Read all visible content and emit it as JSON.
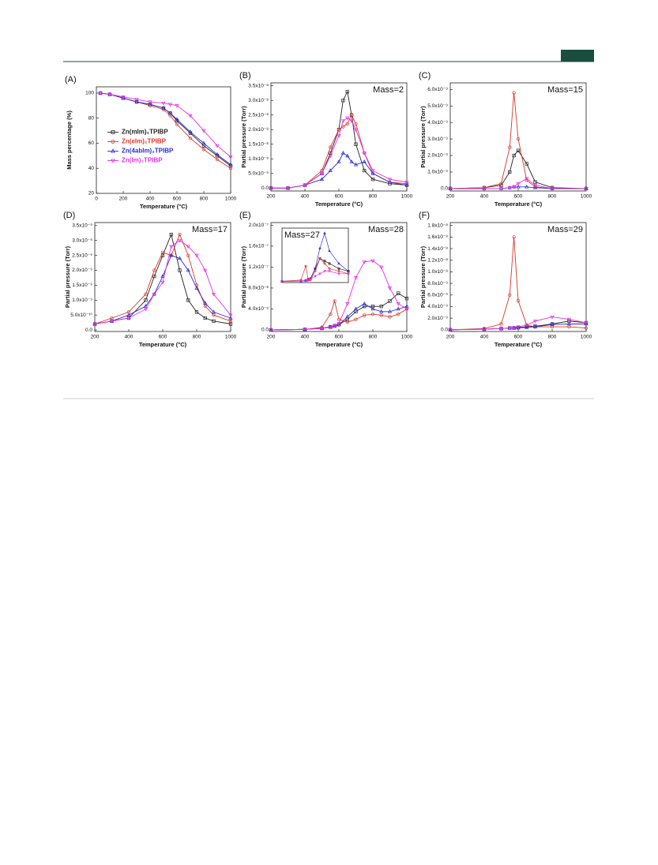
{
  "chart_data": [
    {
      "type": "line",
      "panel": "(A)",
      "xlabel": "Temperature (°C)",
      "ylabel": "Mass percentage (%)",
      "xlim": [
        0,
        1000
      ],
      "xticks": [
        0,
        200,
        400,
        600,
        800,
        1000
      ],
      "ylim": [
        20,
        105
      ],
      "yticks": [
        20,
        40,
        60,
        80,
        100
      ],
      "legend": "center-left",
      "x": [
        30,
        100,
        200,
        300,
        400,
        500,
        550,
        600,
        700,
        800,
        900,
        1000
      ],
      "series": [
        {
          "name": "Zn(mIm)₂TPIBP",
          "color": "#222222",
          "marker": "square",
          "values": [
            100,
            99,
            96,
            93,
            91,
            88,
            84,
            78,
            68,
            58,
            50,
            42
          ]
        },
        {
          "name": "Zn(eIm)₂TPIBP",
          "color": "#d9372a",
          "marker": "circle",
          "values": [
            100,
            99,
            96,
            93,
            90,
            87,
            82,
            75,
            64,
            55,
            47,
            40
          ]
        },
        {
          "name": "Zn(4abIm)₂TPIBP",
          "color": "#2b2bd6",
          "marker": "triangle",
          "values": [
            100,
            99,
            96,
            93,
            91,
            88,
            84,
            79,
            69,
            60,
            51,
            43
          ]
        },
        {
          "name": "Zn(Im)₂TPIBP",
          "color": "#e62ee6",
          "marker": "down",
          "values": [
            100,
            99,
            97,
            95,
            93,
            92,
            91,
            90,
            82,
            70,
            58,
            49
          ]
        }
      ]
    },
    {
      "type": "line",
      "panel": "(B)",
      "annotation": "Mass=2",
      "xlabel": "Temperature (°C)",
      "ylabel": "Partial pressure (Torr)",
      "xlim": [
        200,
        1000
      ],
      "xticks": [
        200,
        400,
        600,
        800,
        1000
      ],
      "ylim": [
        -1e-09,
        3.6e-08
      ],
      "yticks": [
        {
          "value": 0,
          "label": "0.0"
        },
        {
          "value": 5e-09,
          "label": "5.0x10⁻⁹"
        },
        {
          "value": 1e-08,
          "label": "1.0x10⁻⁸"
        },
        {
          "value": 1.5e-08,
          "label": "1.5x10⁻⁸"
        },
        {
          "value": 2e-08,
          "label": "2.0x10⁻⁸"
        },
        {
          "value": 2.5e-08,
          "label": "2.5x10⁻⁸"
        },
        {
          "value": 3e-08,
          "label": "3.0x10⁻⁸"
        },
        {
          "value": 3.5e-08,
          "label": "3.5x10⁻⁸"
        }
      ],
      "x": [
        200,
        300,
        400,
        500,
        550,
        600,
        625,
        650,
        675,
        700,
        750,
        800,
        900,
        1000
      ],
      "series": [
        {
          "color": "#222222",
          "marker": "square",
          "values": [
            0,
            0,
            1e-09,
            5e-09,
            1.2e-08,
            2e-08,
            3e-08,
            3.3e-08,
            2.5e-08,
            1.5e-08,
            6e-09,
            3e-09,
            1.5e-09,
            1e-09
          ]
        },
        {
          "color": "#d9372a",
          "marker": "circle",
          "values": [
            0,
            0,
            1e-09,
            6e-09,
            1.4e-08,
            2e-08,
            2.1e-08,
            2.2e-08,
            2.5e-08,
            2.2e-08,
            1.2e-08,
            5e-09,
            2e-09,
            1.5e-09
          ]
        },
        {
          "color": "#2b2bd6",
          "marker": "triangle",
          "values": [
            0,
            0,
            1e-09,
            3e-09,
            6e-09,
            9e-09,
            1.2e-08,
            1.1e-08,
            9e-09,
            8e-09,
            9e-09,
            5e-09,
            2e-09,
            1e-09
          ]
        },
        {
          "color": "#e62ee6",
          "marker": "down",
          "values": [
            0,
            0,
            1e-09,
            5e-09,
            1.1e-08,
            1.8e-08,
            2.3e-08,
            2.4e-08,
            2.3e-08,
            2e-08,
            1.2e-08,
            6e-09,
            3e-09,
            2e-09
          ]
        }
      ]
    },
    {
      "type": "line",
      "panel": "(C)",
      "annotation": "Mass=15",
      "xlabel": "Temperature (°C)",
      "ylabel": "Partial pressure (Torr)",
      "xlim": [
        200,
        1000
      ],
      "xticks": [
        200,
        400,
        600,
        800,
        1000
      ],
      "ylim": [
        -1.5e-10,
        6.4e-09
      ],
      "yticks": [
        {
          "value": 0,
          "label": "0.0"
        },
        {
          "value": 1e-09,
          "label": "1.0x10⁻⁹"
        },
        {
          "value": 2e-09,
          "label": "2.0x10⁻⁹"
        },
        {
          "value": 3e-09,
          "label": "3.0x10⁻⁹"
        },
        {
          "value": 4e-09,
          "label": "4.0x10⁻⁹"
        },
        {
          "value": 5e-09,
          "label": "5.0x10⁻⁹"
        },
        {
          "value": 6e-09,
          "label": "6.0x10⁻⁹"
        }
      ],
      "x": [
        200,
        400,
        500,
        550,
        575,
        600,
        650,
        700,
        800,
        1000
      ],
      "series": [
        {
          "color": "#222222",
          "marker": "square",
          "values": [
            0,
            5e-11,
            2e-10,
            1e-09,
            2e-09,
            2.3e-09,
            1.5e-09,
            4e-10,
            5e-11,
            0
          ]
        },
        {
          "color": "#d9372a",
          "marker": "circle",
          "values": [
            0,
            5e-11,
            3e-10,
            2.5e-09,
            5.8e-09,
            3e-09,
            5e-10,
            1e-10,
            0,
            0
          ]
        },
        {
          "color": "#2b2bd6",
          "marker": "triangle",
          "values": [
            0,
            0,
            0,
            5e-11,
            1e-10,
            1e-10,
            1e-10,
            5e-11,
            0,
            0
          ]
        },
        {
          "color": "#e62ee6",
          "marker": "down",
          "values": [
            0,
            0,
            0,
            5e-11,
            1e-10,
            3e-10,
            6e-10,
            2e-10,
            0,
            0
          ]
        }
      ]
    },
    {
      "type": "line",
      "panel": "(D)",
      "annotation": "Mass=17",
      "xlabel": "Temperature (°C)",
      "ylabel": "Partial pressure (Torr)",
      "xlim": [
        200,
        1000
      ],
      "xticks": [
        200,
        400,
        600,
        800,
        1000
      ],
      "ylim": [
        -5e-11,
        3.6e-09
      ],
      "yticks": [
        {
          "value": 0,
          "label": "0.0"
        },
        {
          "value": 5e-10,
          "label": "5.0x10⁻¹⁰"
        },
        {
          "value": 1e-09,
          "label": "1.0x10⁻⁹"
        },
        {
          "value": 1.5e-09,
          "label": "1.5x10⁻⁹"
        },
        {
          "value": 2e-09,
          "label": "2.0x10⁻⁹"
        },
        {
          "value": 2.5e-09,
          "label": "2.5x10⁻⁹"
        },
        {
          "value": 3e-09,
          "label": "3.0x10⁻⁹"
        },
        {
          "value": 3.5e-09,
          "label": "3.5x10⁻⁹"
        }
      ],
      "x": [
        200,
        300,
        400,
        500,
        550,
        600,
        650,
        700,
        750,
        800,
        850,
        900,
        1000
      ],
      "series": [
        {
          "color": "#222222",
          "marker": "square",
          "values": [
            2e-10,
            3e-10,
            4e-10,
            1e-09,
            1.8e-09,
            2.5e-09,
            3.2e-09,
            2e-09,
            1e-09,
            6e-10,
            4e-10,
            3e-10,
            2e-10
          ]
        },
        {
          "color": "#d9372a",
          "marker": "circle",
          "values": [
            2e-10,
            4e-10,
            6e-10,
            1.2e-09,
            2e-09,
            2.6e-09,
            2.5e-09,
            3.2e-09,
            2.5e-09,
            1.5e-09,
            8e-10,
            5e-10,
            3e-10
          ]
        },
        {
          "color": "#2b2bd6",
          "marker": "triangle",
          "values": [
            2e-10,
            3e-10,
            5e-10,
            8e-10,
            1.2e-09,
            1.8e-09,
            2.5e-09,
            2.4e-09,
            2e-09,
            1.4e-09,
            9e-10,
            6e-10,
            4e-10
          ]
        },
        {
          "color": "#e62ee6",
          "marker": "down",
          "values": [
            2e-10,
            3e-10,
            4e-10,
            7e-10,
            1.2e-09,
            1.6e-09,
            2.8e-09,
            3e-09,
            2.8e-09,
            2.5e-09,
            2e-09,
            1.2e-09,
            5e-10
          ]
        }
      ]
    },
    {
      "type": "line",
      "panel": "(E)",
      "annotation": "Mass=28",
      "xlabel": "Temperature (°C)",
      "ylabel": "Partial pressure (Torr)",
      "xlim": [
        200,
        1000
      ],
      "xticks": [
        200,
        400,
        600,
        800,
        1000
      ],
      "ylim": [
        -3e-09,
        2.05e-07
      ],
      "yticks": [
        {
          "value": 0,
          "label": "0.0"
        },
        {
          "value": 4e-08,
          "label": "4.0x10⁻⁸"
        },
        {
          "value": 8e-08,
          "label": "8.0x10⁻⁸"
        },
        {
          "value": 1.2e-07,
          "label": "1.2x10⁻⁷"
        },
        {
          "value": 1.6e-07,
          "label": "1.6x10⁻⁷"
        },
        {
          "value": 2e-07,
          "label": "2.0x10⁻⁷"
        }
      ],
      "x": [
        200,
        400,
        500,
        550,
        575,
        600,
        650,
        700,
        750,
        800,
        850,
        900,
        950,
        1000
      ],
      "series": [
        {
          "color": "#222222",
          "marker": "square",
          "values": [
            0,
            1e-09,
            3e-09,
            6e-09,
            8e-09,
            1e-08,
            2e-08,
            3.5e-08,
            4.5e-08,
            4.5e-08,
            4.5e-08,
            5.5e-08,
            7e-08,
            6e-08
          ]
        },
        {
          "color": "#d9372a",
          "marker": "circle",
          "values": [
            0,
            1e-09,
            5e-09,
            3e-08,
            5.5e-08,
            2e-08,
            1.5e-08,
            2e-08,
            2.8e-08,
            3e-08,
            2.8e-08,
            2.5e-08,
            3e-08,
            4e-08
          ]
        },
        {
          "color": "#2b2bd6",
          "marker": "triangle",
          "values": [
            0,
            1e-09,
            3e-09,
            5e-09,
            7e-09,
            1e-08,
            2.5e-08,
            4e-08,
            5e-08,
            4e-08,
            3.5e-08,
            3.5e-08,
            4e-08,
            4.5e-08
          ]
        },
        {
          "color": "#e62ee6",
          "marker": "down",
          "values": [
            0,
            1e-09,
            3e-09,
            5e-09,
            8e-09,
            1.2e-08,
            5e-08,
            1e-07,
            1.3e-07,
            1.32e-07,
            1.2e-07,
            8e-08,
            5e-08,
            4e-08
          ]
        }
      ]
    },
    {
      "type": "line",
      "panel": "(F)",
      "annotation": "Mass=29",
      "xlabel": "Temperature (°C)",
      "ylabel": "Partial pressure (Torr)",
      "xlim": [
        200,
        1000
      ],
      "xticks": [
        200,
        400,
        600,
        800,
        1000
      ],
      "ylim": [
        -3e-10,
        1.85e-08
      ],
      "yticks": [
        {
          "value": 0,
          "label": "0.0"
        },
        {
          "value": 2e-09,
          "label": "2.0x10⁻⁹"
        },
        {
          "value": 4e-09,
          "label": "4.0x10⁻⁹"
        },
        {
          "value": 6e-09,
          "label": "6.0x10⁻⁹"
        },
        {
          "value": 8e-09,
          "label": "8.0x10⁻⁹"
        },
        {
          "value": 1e-08,
          "label": "1.0x10⁻⁸"
        },
        {
          "value": 1.2e-08,
          "label": "1.2x10⁻⁸"
        },
        {
          "value": 1.4e-08,
          "label": "1.4x10⁻⁸"
        },
        {
          "value": 1.6e-08,
          "label": "1.6x10⁻⁸"
        },
        {
          "value": 1.8e-08,
          "label": "1.8x10⁻⁸"
        }
      ],
      "x": [
        200,
        400,
        500,
        550,
        575,
        600,
        650,
        700,
        800,
        900,
        1000
      ],
      "series": [
        {
          "color": "#222222",
          "marker": "square",
          "values": [
            0,
            1e-10,
            2e-10,
            3e-10,
            3e-10,
            4e-10,
            5e-10,
            6e-10,
            1e-09,
            1.5e-09,
            1.2e-09
          ]
        },
        {
          "color": "#d9372a",
          "marker": "circle",
          "values": [
            0,
            2e-10,
            1e-09,
            6e-09,
            1.6e-08,
            5e-09,
            8e-10,
            5e-10,
            5e-10,
            5e-10,
            3e-10
          ]
        },
        {
          "color": "#2b2bd6",
          "marker": "triangle",
          "values": [
            0,
            1e-10,
            2e-10,
            3e-10,
            3e-10,
            3e-10,
            4e-10,
            5e-10,
            9e-10,
            1e-09,
            1e-09
          ]
        },
        {
          "color": "#e62ee6",
          "marker": "down",
          "values": [
            0,
            1e-10,
            2e-10,
            3e-10,
            4e-10,
            5e-10,
            8e-10,
            1.5e-09,
            2.2e-09,
            1.8e-09,
            1.2e-09
          ]
        }
      ]
    },
    {
      "type": "line",
      "annotation": "Mass=27",
      "xlim": [
        300,
        1000
      ],
      "ylim": [
        -5e-09,
        2.1e-07
      ],
      "x": [
        300,
        500,
        550,
        575,
        600,
        650,
        700,
        750,
        800,
        900,
        1000
      ],
      "series": [
        {
          "color": "#222222",
          "marker": "square",
          "values": [
            0,
            1e-09,
            3e-09,
            5e-09,
            1e-08,
            5e-08,
            9e-08,
            8e-08,
            7e-08,
            5e-08,
            4e-08
          ]
        },
        {
          "color": "#d9372a",
          "marker": "circle",
          "values": [
            0,
            5e-09,
            6e-08,
            1e-08,
            5e-09,
            4e-08,
            9e-08,
            7e-08,
            5e-08,
            4e-08,
            3e-08
          ]
        },
        {
          "color": "#2b2bd6",
          "marker": "triangle",
          "values": [
            0,
            1e-09,
            3e-09,
            5e-09,
            1e-08,
            5e-08,
            1.3e-07,
            1.9e-07,
            1.2e-07,
            7e-08,
            4e-08
          ]
        },
        {
          "color": "#e62ee6",
          "marker": "down",
          "values": [
            0,
            1e-09,
            2e-09,
            4e-09,
            8e-09,
            2e-08,
            3e-08,
            4e-08,
            4e-08,
            3e-08,
            3e-08
          ]
        }
      ]
    }
  ]
}
